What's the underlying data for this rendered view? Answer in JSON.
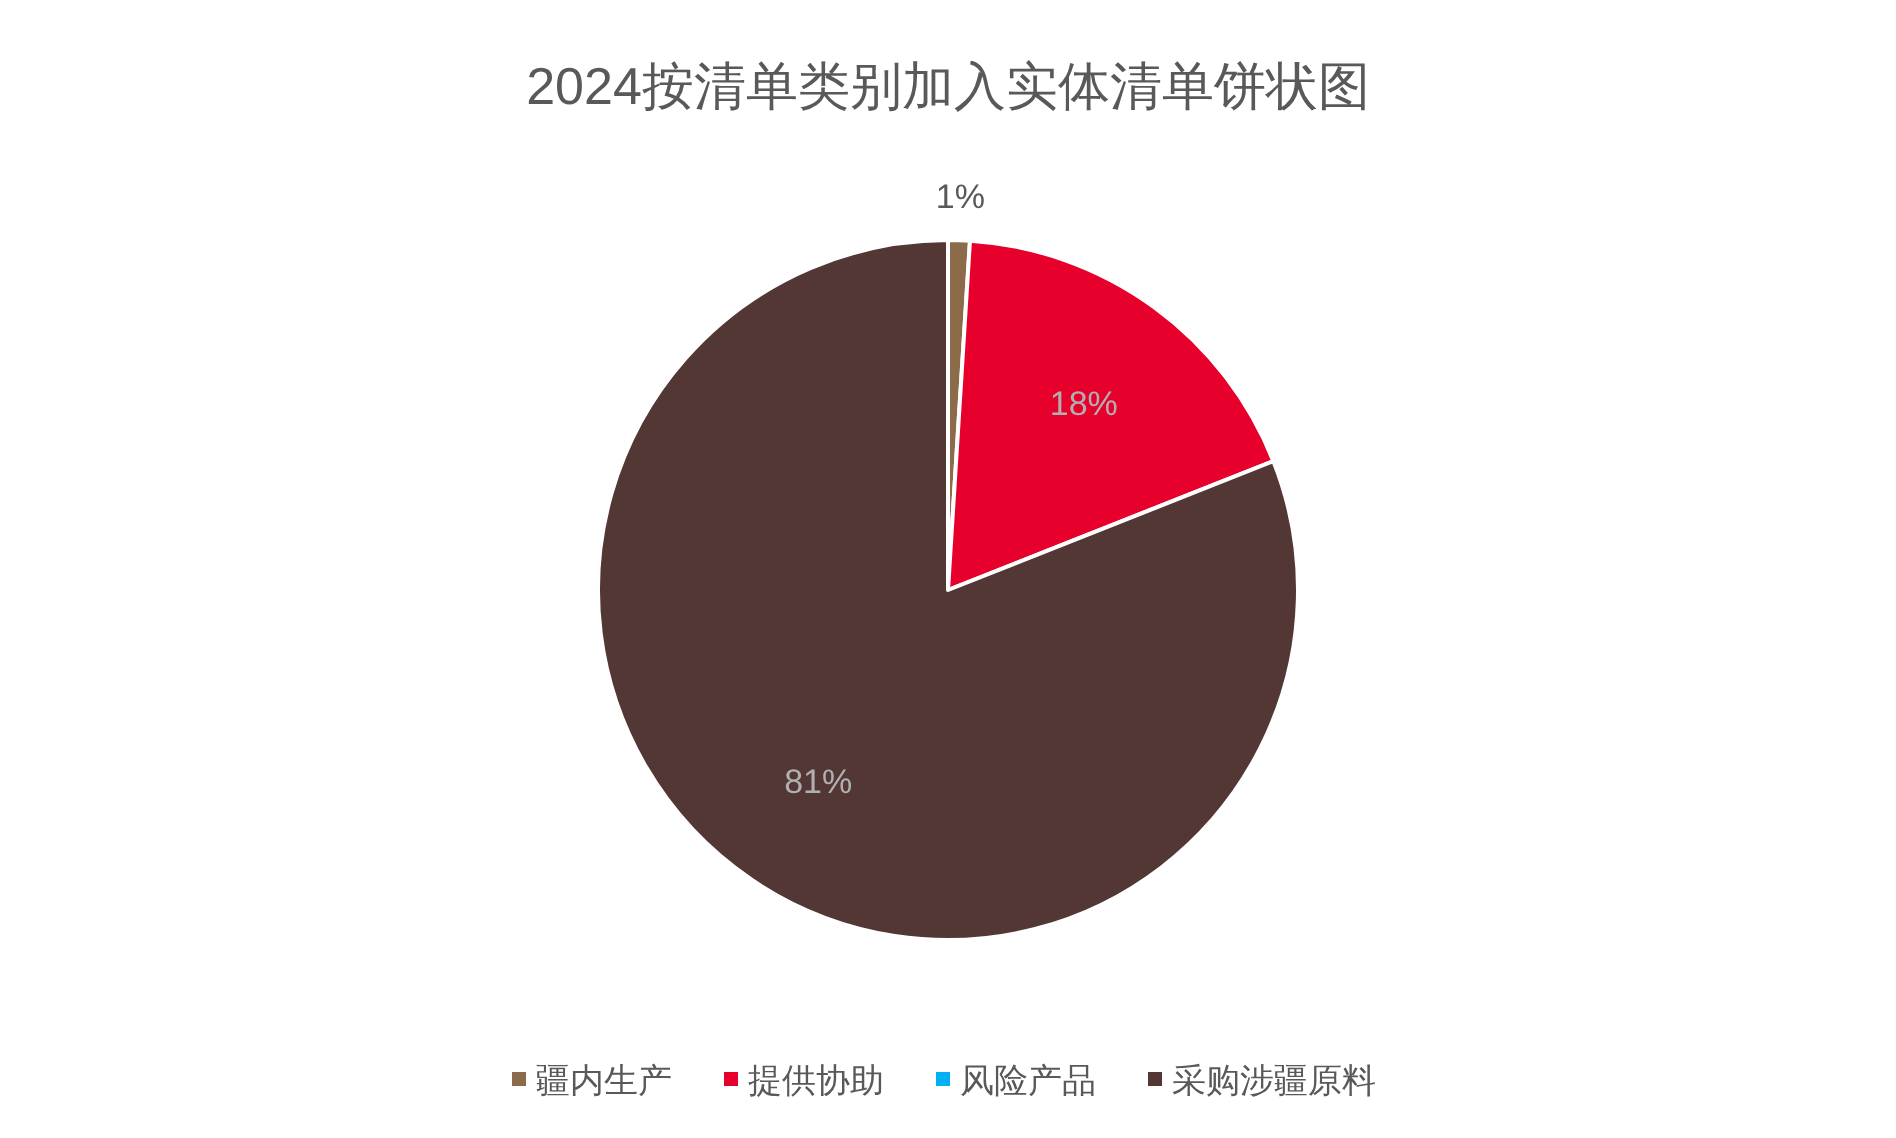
{
  "chart_data": {
    "type": "pie",
    "title": "2024按清单类别加入实体清单饼状图",
    "categories": [
      "疆内生产",
      "提供协助",
      "风险产品",
      "采购涉疆原料"
    ],
    "values": [
      1,
      18,
      0,
      81
    ],
    "colors": [
      "#8b6b4a",
      "#e8002d",
      "#00b0f0",
      "#523735"
    ],
    "value_labels": [
      "1%",
      "18%",
      null,
      "81%"
    ],
    "legend": "bottom"
  }
}
